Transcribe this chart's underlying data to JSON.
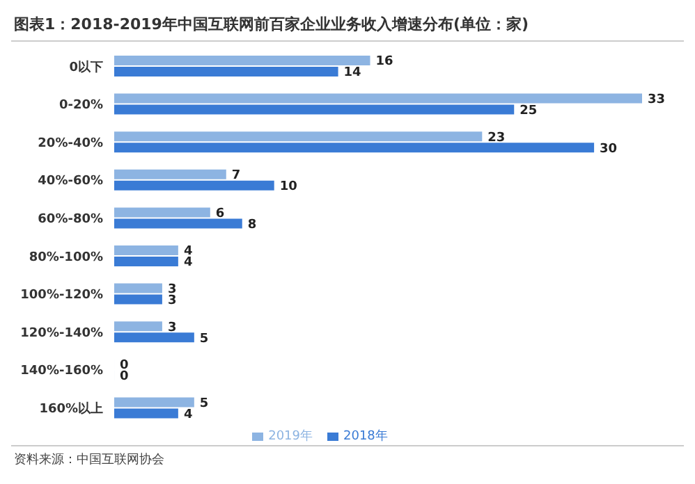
{
  "chart_data": {
    "type": "bar",
    "orientation": "horizontal",
    "title": "图表1：2018-2019年中国互联网前百家企业业务收入增速分布(单位：家)",
    "categories": [
      "0以下",
      "0-20%",
      "20%-40%",
      "40%-60%",
      "60%-80%",
      "80%-100%",
      "100%-120%",
      "120%-140%",
      "140%-160%",
      "160%以上"
    ],
    "series": [
      {
        "name": "2019年",
        "color": "#8db4e2",
        "values": [
          16,
          33,
          23,
          7,
          6,
          4,
          3,
          3,
          0,
          5
        ]
      },
      {
        "name": "2018年",
        "color": "#3a7bd5",
        "values": [
          14,
          25,
          30,
          10,
          8,
          4,
          3,
          5,
          0,
          4
        ]
      }
    ],
    "data_labels": true,
    "legend": "bottom",
    "grid": false,
    "annotations": [
      "资料来源：中国互联网协会"
    ]
  }
}
